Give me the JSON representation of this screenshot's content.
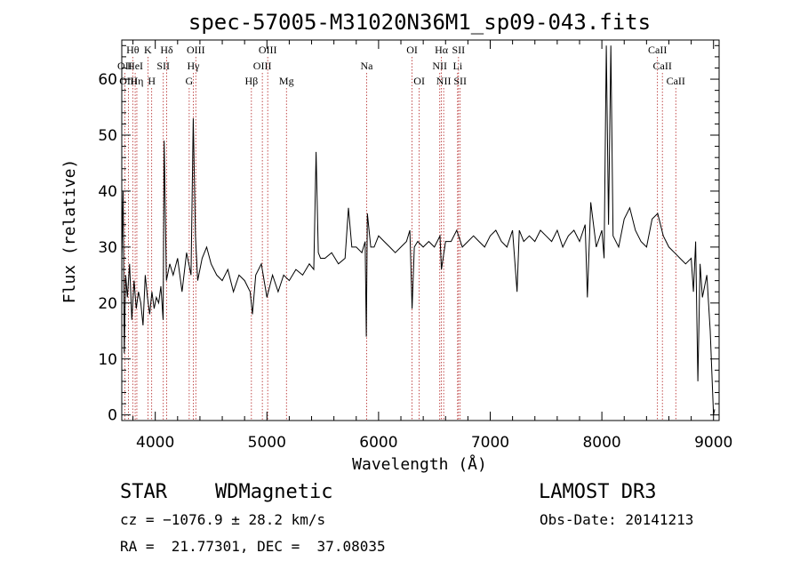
{
  "chart_data": {
    "type": "line",
    "title": "spec-57005-M31020N36M1_sp09-043.fits",
    "xlabel": "Wavelength (Å)",
    "ylabel": "Flux (relative)",
    "xlim": [
      3700,
      9050
    ],
    "ylim": [
      -1,
      67
    ],
    "xticks": [
      4000,
      5000,
      6000,
      7000,
      8000,
      9000
    ],
    "yticks": [
      0,
      10,
      20,
      30,
      40,
      50,
      60
    ],
    "xtick_labels": [
      "4000",
      "5000",
      "6000",
      "7000",
      "8000",
      "9000"
    ],
    "ytick_labels": [
      "0",
      "10",
      "20",
      "30",
      "40",
      "50",
      "60"
    ],
    "series": [
      {
        "name": "flux",
        "x": [
          3700,
          3712,
          3722,
          3735,
          3750,
          3770,
          3790,
          3810,
          3830,
          3850,
          3870,
          3890,
          3910,
          3930,
          3950,
          3970,
          3990,
          4010,
          4030,
          4050,
          4070,
          4080,
          4100,
          4130,
          4160,
          4200,
          4240,
          4280,
          4320,
          4340,
          4360,
          4380,
          4420,
          4460,
          4500,
          4550,
          4600,
          4650,
          4700,
          4750,
          4800,
          4850,
          4870,
          4900,
          4950,
          5000,
          5050,
          5100,
          5150,
          5200,
          5260,
          5320,
          5380,
          5420,
          5440,
          5460,
          5480,
          5520,
          5580,
          5640,
          5700,
          5730,
          5760,
          5800,
          5850,
          5880,
          5890,
          5900,
          5930,
          5960,
          6000,
          6050,
          6100,
          6150,
          6200,
          6250,
          6280,
          6300,
          6320,
          6350,
          6400,
          6450,
          6500,
          6550,
          6563,
          6600,
          6650,
          6700,
          6750,
          6800,
          6850,
          6900,
          6950,
          7000,
          7050,
          7100,
          7150,
          7200,
          7240,
          7260,
          7300,
          7350,
          7400,
          7450,
          7500,
          7550,
          7600,
          7650,
          7700,
          7750,
          7800,
          7850,
          7870,
          7900,
          7950,
          8000,
          8020,
          8040,
          8060,
          8080,
          8100,
          8150,
          8200,
          8250,
          8300,
          8350,
          8400,
          8450,
          8500,
          8550,
          8600,
          8650,
          8700,
          8750,
          8800,
          8820,
          8840,
          8860,
          8880,
          8900,
          8940,
          8970,
          9000,
          9010
        ],
        "y": [
          28,
          40,
          11,
          25,
          21,
          27,
          17,
          24,
          19,
          22,
          20,
          16,
          25,
          21,
          18,
          22,
          19,
          21,
          20,
          23,
          17,
          49,
          24,
          27,
          25,
          28,
          22,
          29,
          25,
          53,
          32,
          24,
          28,
          30,
          27,
          25,
          24,
          26,
          22,
          25,
          24,
          22,
          18,
          25,
          27,
          21,
          25,
          22,
          25,
          24,
          26,
          25,
          27,
          26,
          47,
          29,
          28,
          28,
          29,
          27,
          28,
          37,
          30,
          30,
          29,
          31,
          14,
          36,
          30,
          30,
          32,
          31,
          30,
          29,
          30,
          31,
          33,
          19,
          30,
          31,
          30,
          31,
          30,
          32,
          26,
          31,
          31,
          33,
          30,
          31,
          32,
          31,
          30,
          32,
          33,
          31,
          30,
          33,
          22,
          33,
          31,
          32,
          31,
          33,
          32,
          31,
          33,
          30,
          32,
          33,
          31,
          34,
          21,
          38,
          30,
          33,
          28,
          66,
          34,
          66,
          32,
          30,
          35,
          37,
          33,
          31,
          30,
          35,
          36,
          32,
          30,
          29,
          28,
          27,
          28,
          22,
          31,
          6,
          27,
          21,
          25,
          15,
          0,
          1
        ]
      }
    ],
    "lines": [
      {
        "name": "Hθ",
        "x": 3798,
        "row": 0
      },
      {
        "name": "OII",
        "x": 3727,
        "row": 1
      },
      {
        "name": "OIII",
        "x": 3760,
        "row": 2
      },
      {
        "name": "HeI",
        "x": 3820,
        "row": 1
      },
      {
        "name": "Hη",
        "x": 3835,
        "row": 2
      },
      {
        "name": "K",
        "x": 3934,
        "row": 0
      },
      {
        "name": "SII",
        "x": 4072,
        "row": 1
      },
      {
        "name": "H",
        "x": 3968,
        "row": 2
      },
      {
        "name": "Hδ",
        "x": 4102,
        "row": 0
      },
      {
        "name": "OIII",
        "x": 4363,
        "row": 0
      },
      {
        "name": "Hγ",
        "x": 4341,
        "row": 1
      },
      {
        "name": "G",
        "x": 4304,
        "row": 2
      },
      {
        "name": "Hβ",
        "x": 4861,
        "row": 2
      },
      {
        "name": "OIII",
        "x": 5007,
        "row": 0
      },
      {
        "name": "OIII",
        "x": 4959,
        "row": 1
      },
      {
        "name": "Mg",
        "x": 5175,
        "row": 2
      },
      {
        "name": "Na",
        "x": 5893,
        "row": 1
      },
      {
        "name": "OI",
        "x": 6300,
        "row": 0
      },
      {
        "name": "OI",
        "x": 6364,
        "row": 2
      },
      {
        "name": "Hα",
        "x": 6563,
        "row": 0
      },
      {
        "name": "SII",
        "x": 6716,
        "row": 0
      },
      {
        "name": "NII",
        "x": 6548,
        "row": 1
      },
      {
        "name": "Li",
        "x": 6708,
        "row": 1
      },
      {
        "name": "NII",
        "x": 6583,
        "row": 2
      },
      {
        "name": "SII",
        "x": 6731,
        "row": 2
      },
      {
        "name": "CaII",
        "x": 8498,
        "row": 0
      },
      {
        "name": "CaII",
        "x": 8542,
        "row": 1
      },
      {
        "name": "CaII",
        "x": 8662,
        "row": 2
      }
    ]
  },
  "info": {
    "class": "STAR",
    "subclass": "WDMagnetic",
    "survey": "LAMOST DR3",
    "cz": "cz = −1076.9 ± 28.2 km/s",
    "obs_date": "Obs-Date: 20141213",
    "coords": "RA =  21.77301, DEC =  37.08035"
  },
  "colors": {
    "axis": "#000000",
    "spectrum": "#000000",
    "line_marker": "#b22222",
    "background": "#ffffff"
  }
}
